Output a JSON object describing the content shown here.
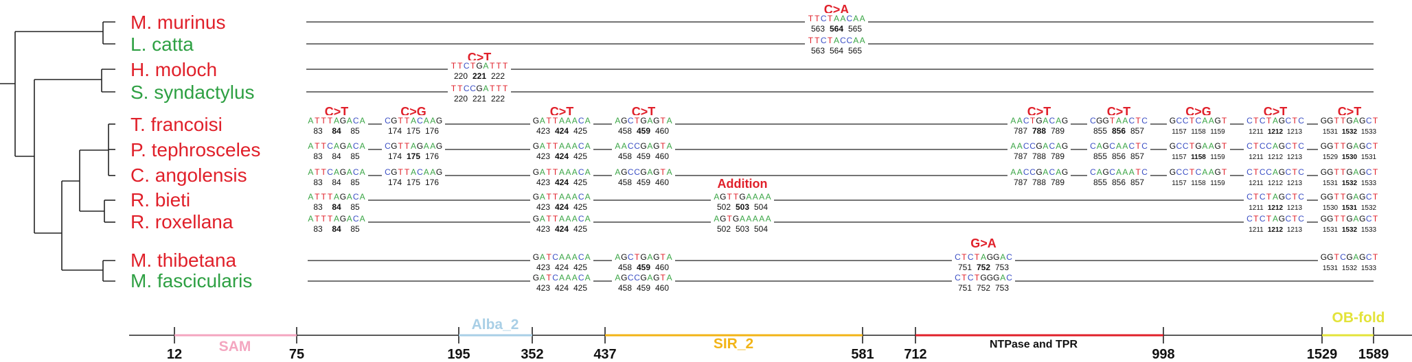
{
  "species": [
    {
      "name": "M. murinus",
      "group": "red"
    },
    {
      "name": "L. catta",
      "group": "green"
    },
    {
      "name": "H. moloch",
      "group": "red"
    },
    {
      "name": "S. syndactylus",
      "group": "green"
    },
    {
      "name": "T. francoisi",
      "group": "red"
    },
    {
      "name": "P. tephrosceles",
      "group": "red"
    },
    {
      "name": "C. angolensis",
      "group": "red"
    },
    {
      "name": "R. bieti",
      "group": "red"
    },
    {
      "name": "R. roxellana",
      "group": "red"
    },
    {
      "name": "M. thibetana",
      "group": "red"
    },
    {
      "name": "M. fascicularis",
      "group": "green"
    }
  ],
  "mutations": [
    {
      "label": "C>A",
      "col": 7
    },
    {
      "label": "C>T",
      "col": 3
    },
    {
      "label": "C>T",
      "col": 0
    },
    {
      "label": "C>G",
      "col": 1
    },
    {
      "label": "C>T",
      "col": 2
    },
    {
      "label": "C>T",
      "col": 4
    },
    {
      "label": "Addition",
      "col": 5
    },
    {
      "label": "C>T",
      "col": 8
    },
    {
      "label": "C>T",
      "col": 9
    },
    {
      "label": "C>G",
      "col": 10
    },
    {
      "label": "C>T",
      "col": 11
    },
    {
      "label": "C>T",
      "col": 12
    },
    {
      "label": "G>A",
      "col": 6
    }
  ],
  "snippets": [
    {
      "row": 0,
      "col": 7,
      "seq": "TTCTAACAA",
      "pos": [
        "563",
        "564",
        "565"
      ],
      "hl": 1
    },
    {
      "row": 1,
      "col": 7,
      "seq": "TTCTACCAA",
      "pos": [
        "563",
        "564",
        "565"
      ],
      "hl": -1
    },
    {
      "row": 2,
      "col": 3,
      "seq": "TTCTGATTT",
      "pos": [
        "220",
        "221",
        "222"
      ],
      "hl": 1
    },
    {
      "row": 3,
      "col": 3,
      "seq": "TTCCGATTT",
      "pos": [
        "220",
        "221",
        "222"
      ],
      "hl": -1
    },
    {
      "row": 4,
      "col": 0,
      "seq": "ATTTAGACA",
      "pos": [
        "83",
        "84",
        "85"
      ],
      "hl": 1
    },
    {
      "row": 4,
      "col": 1,
      "seq": "CGTTACAAG",
      "pos": [
        "174",
        "175",
        "176"
      ],
      "hl": -1
    },
    {
      "row": 4,
      "col": 2,
      "seq": "GATTAAACA",
      "pos": [
        "423",
        "424",
        "425"
      ],
      "hl": 1
    },
    {
      "row": 4,
      "col": 4,
      "seq": "AGCTGAGTA",
      "pos": [
        "458",
        "459",
        "460"
      ],
      "hl": 1
    },
    {
      "row": 4,
      "col": 8,
      "seq": "AACTGACAG",
      "pos": [
        "787",
        "788",
        "789"
      ],
      "hl": 1
    },
    {
      "row": 4,
      "col": 9,
      "seq": "CGGTAACTC",
      "pos": [
        "855",
        "856",
        "857"
      ],
      "hl": 1
    },
    {
      "row": 4,
      "col": 10,
      "seq": "GCCTCAAGT",
      "pos": [
        "1157",
        "1158",
        "1159"
      ],
      "hl": -1,
      "small": true
    },
    {
      "row": 4,
      "col": 11,
      "seq": "CTCTAGCTC",
      "pos": [
        "1211",
        "1212",
        "1213"
      ],
      "hl": 1,
      "small": true
    },
    {
      "row": 4,
      "col": 12,
      "seq": "GGTTGAGCT",
      "pos": [
        "1531",
        "1532",
        "1533"
      ],
      "hl": 1,
      "small": true
    },
    {
      "row": 5,
      "col": 0,
      "seq": "ATTCAGACA",
      "pos": [
        "83",
        "84",
        "85"
      ],
      "hl": -1
    },
    {
      "row": 5,
      "col": 1,
      "seq": "CGTTAGAAG",
      "pos": [
        "174",
        "175",
        "176"
      ],
      "hl": 1
    },
    {
      "row": 5,
      "col": 2,
      "seq": "GATTAAACA",
      "pos": [
        "423",
        "424",
        "425"
      ],
      "hl": 1
    },
    {
      "row": 5,
      "col": 4,
      "seq": "AACCGAGTA",
      "pos": [
        "458",
        "459",
        "460"
      ],
      "hl": -1
    },
    {
      "row": 5,
      "col": 8,
      "seq": "AACCGACAG",
      "pos": [
        "787",
        "788",
        "789"
      ],
      "hl": -1
    },
    {
      "row": 5,
      "col": 9,
      "seq": "CAGCAACTC",
      "pos": [
        "855",
        "856",
        "857"
      ],
      "hl": -1
    },
    {
      "row": 5,
      "col": 10,
      "seq": "GCCTGAAGT",
      "pos": [
        "1157",
        "1158",
        "1159"
      ],
      "hl": 1,
      "small": true
    },
    {
      "row": 5,
      "col": 11,
      "seq": "CTCCAGCTC",
      "pos": [
        "1211",
        "1212",
        "1213"
      ],
      "hl": -1,
      "small": true
    },
    {
      "row": 5,
      "col": 12,
      "seq": "GGTTGAGCT",
      "pos": [
        "1529",
        "1530",
        "1531"
      ],
      "hl": 1,
      "small": true
    },
    {
      "row": 6,
      "col": 0,
      "seq": "ATTCAGACA",
      "pos": [
        "83",
        "84",
        "85"
      ],
      "hl": -1
    },
    {
      "row": 6,
      "col": 1,
      "seq": "CGTTACAAG",
      "pos": [
        "174",
        "175",
        "176"
      ],
      "hl": -1
    },
    {
      "row": 6,
      "col": 2,
      "seq": "GATTAAACA",
      "pos": [
        "423",
        "424",
        "425"
      ],
      "hl": 1
    },
    {
      "row": 6,
      "col": 4,
      "seq": "AGCCGAGTA",
      "pos": [
        "458",
        "459",
        "460"
      ],
      "hl": -1
    },
    {
      "row": 6,
      "col": 8,
      "seq": "AACCGACAG",
      "pos": [
        "787",
        "788",
        "789"
      ],
      "hl": -1
    },
    {
      "row": 6,
      "col": 9,
      "seq": "CAGCAAATC",
      "pos": [
        "855",
        "856",
        "857"
      ],
      "hl": -1
    },
    {
      "row": 6,
      "col": 10,
      "seq": "GCCTCAAGT",
      "pos": [
        "1157",
        "1158",
        "1159"
      ],
      "hl": -1,
      "small": true
    },
    {
      "row": 6,
      "col": 11,
      "seq": "CTCCAGCTC",
      "pos": [
        "1211",
        "1212",
        "1213"
      ],
      "hl": -1,
      "small": true
    },
    {
      "row": 6,
      "col": 12,
      "seq": "GGTTGAGCT",
      "pos": [
        "1531",
        "1532",
        "1533"
      ],
      "hl": 1,
      "small": true
    },
    {
      "row": 7,
      "col": 0,
      "seq": "ATTTAGACA",
      "pos": [
        "83",
        "84",
        "85"
      ],
      "hl": 1
    },
    {
      "row": 7,
      "col": 2,
      "seq": "GATTAAACA",
      "pos": [
        "423",
        "424",
        "425"
      ],
      "hl": 1
    },
    {
      "row": 7,
      "col": 5,
      "seq": "AGTTGAAAA",
      "pos": [
        "502",
        "503",
        "504"
      ],
      "hl": 1
    },
    {
      "row": 7,
      "col": 11,
      "seq": "CTCTAGCTC",
      "pos": [
        "1211",
        "1212",
        "1213"
      ],
      "hl": 1,
      "small": true
    },
    {
      "row": 7,
      "col": 12,
      "seq": "GGTTGAGCT",
      "pos": [
        "1530",
        "1531",
        "1532"
      ],
      "hl": 1,
      "small": true
    },
    {
      "row": 8,
      "col": 0,
      "seq": "ATTTAGACA",
      "pos": [
        "83",
        "84",
        "85"
      ],
      "hl": 1
    },
    {
      "row": 8,
      "col": 2,
      "seq": "GATTAAACA",
      "pos": [
        "423",
        "424",
        "425"
      ],
      "hl": 1
    },
    {
      "row": 8,
      "col": 5,
      "seq": "AGTGAAAAA",
      "pos": [
        "502",
        "503",
        "504"
      ],
      "hl": -1
    },
    {
      "row": 8,
      "col": 11,
      "seq": "CTCTAGCTC",
      "pos": [
        "1211",
        "1212",
        "1213"
      ],
      "hl": 1,
      "small": true
    },
    {
      "row": 8,
      "col": 12,
      "seq": "GGTTGAGCT",
      "pos": [
        "1531",
        "1532",
        "1533"
      ],
      "hl": 1,
      "small": true
    },
    {
      "row": 9,
      "col": 2,
      "seq": "GATCAAACA",
      "pos": [
        "423",
        "424",
        "425"
      ],
      "hl": -1
    },
    {
      "row": 9,
      "col": 4,
      "seq": "AGCTGAGTA",
      "pos": [
        "458",
        "459",
        "460"
      ],
      "hl": 1
    },
    {
      "row": 9,
      "col": 6,
      "seq": "CTCTAGGAC",
      "pos": [
        "751",
        "752",
        "753"
      ],
      "hl": 1
    },
    {
      "row": 9,
      "col": 12,
      "seq": "GGTCGAGCT",
      "pos": [
        "1531",
        "1532",
        "1533"
      ],
      "hl": -1,
      "small": true
    },
    {
      "row": 10,
      "col": 2,
      "seq": "GATCAAACA",
      "pos": [
        "423",
        "424",
        "425"
      ],
      "hl": -1
    },
    {
      "row": 10,
      "col": 4,
      "seq": "AGCCGAGTA",
      "pos": [
        "458",
        "459",
        "460"
      ],
      "hl": -1
    },
    {
      "row": 10,
      "col": 6,
      "seq": "CTCTGGGAC",
      "pos": [
        "751",
        "752",
        "753"
      ],
      "hl": -1
    }
  ],
  "axis": {
    "ticks": [
      "12",
      "75",
      "195",
      "352",
      "437",
      "581",
      "712",
      "998",
      "1529",
      "1589"
    ],
    "domains": [
      {
        "name": "SAM",
        "color": "#f4a6c0"
      },
      {
        "name": "Alba_2",
        "color": "#a9cfe6"
      },
      {
        "name": "SIR_2",
        "color": "#f2b417"
      },
      {
        "name": "NTPase and TPR",
        "color": "#e0202a"
      },
      {
        "name": "OB-fold",
        "color": "#e3e33a"
      }
    ]
  },
  "colors": {
    "red": "#e0202a",
    "green": "#2ea043",
    "base_A": "#3aa545",
    "base_T": "#e0202a",
    "base_C": "#3b4fc4",
    "base_G": "#111111"
  }
}
